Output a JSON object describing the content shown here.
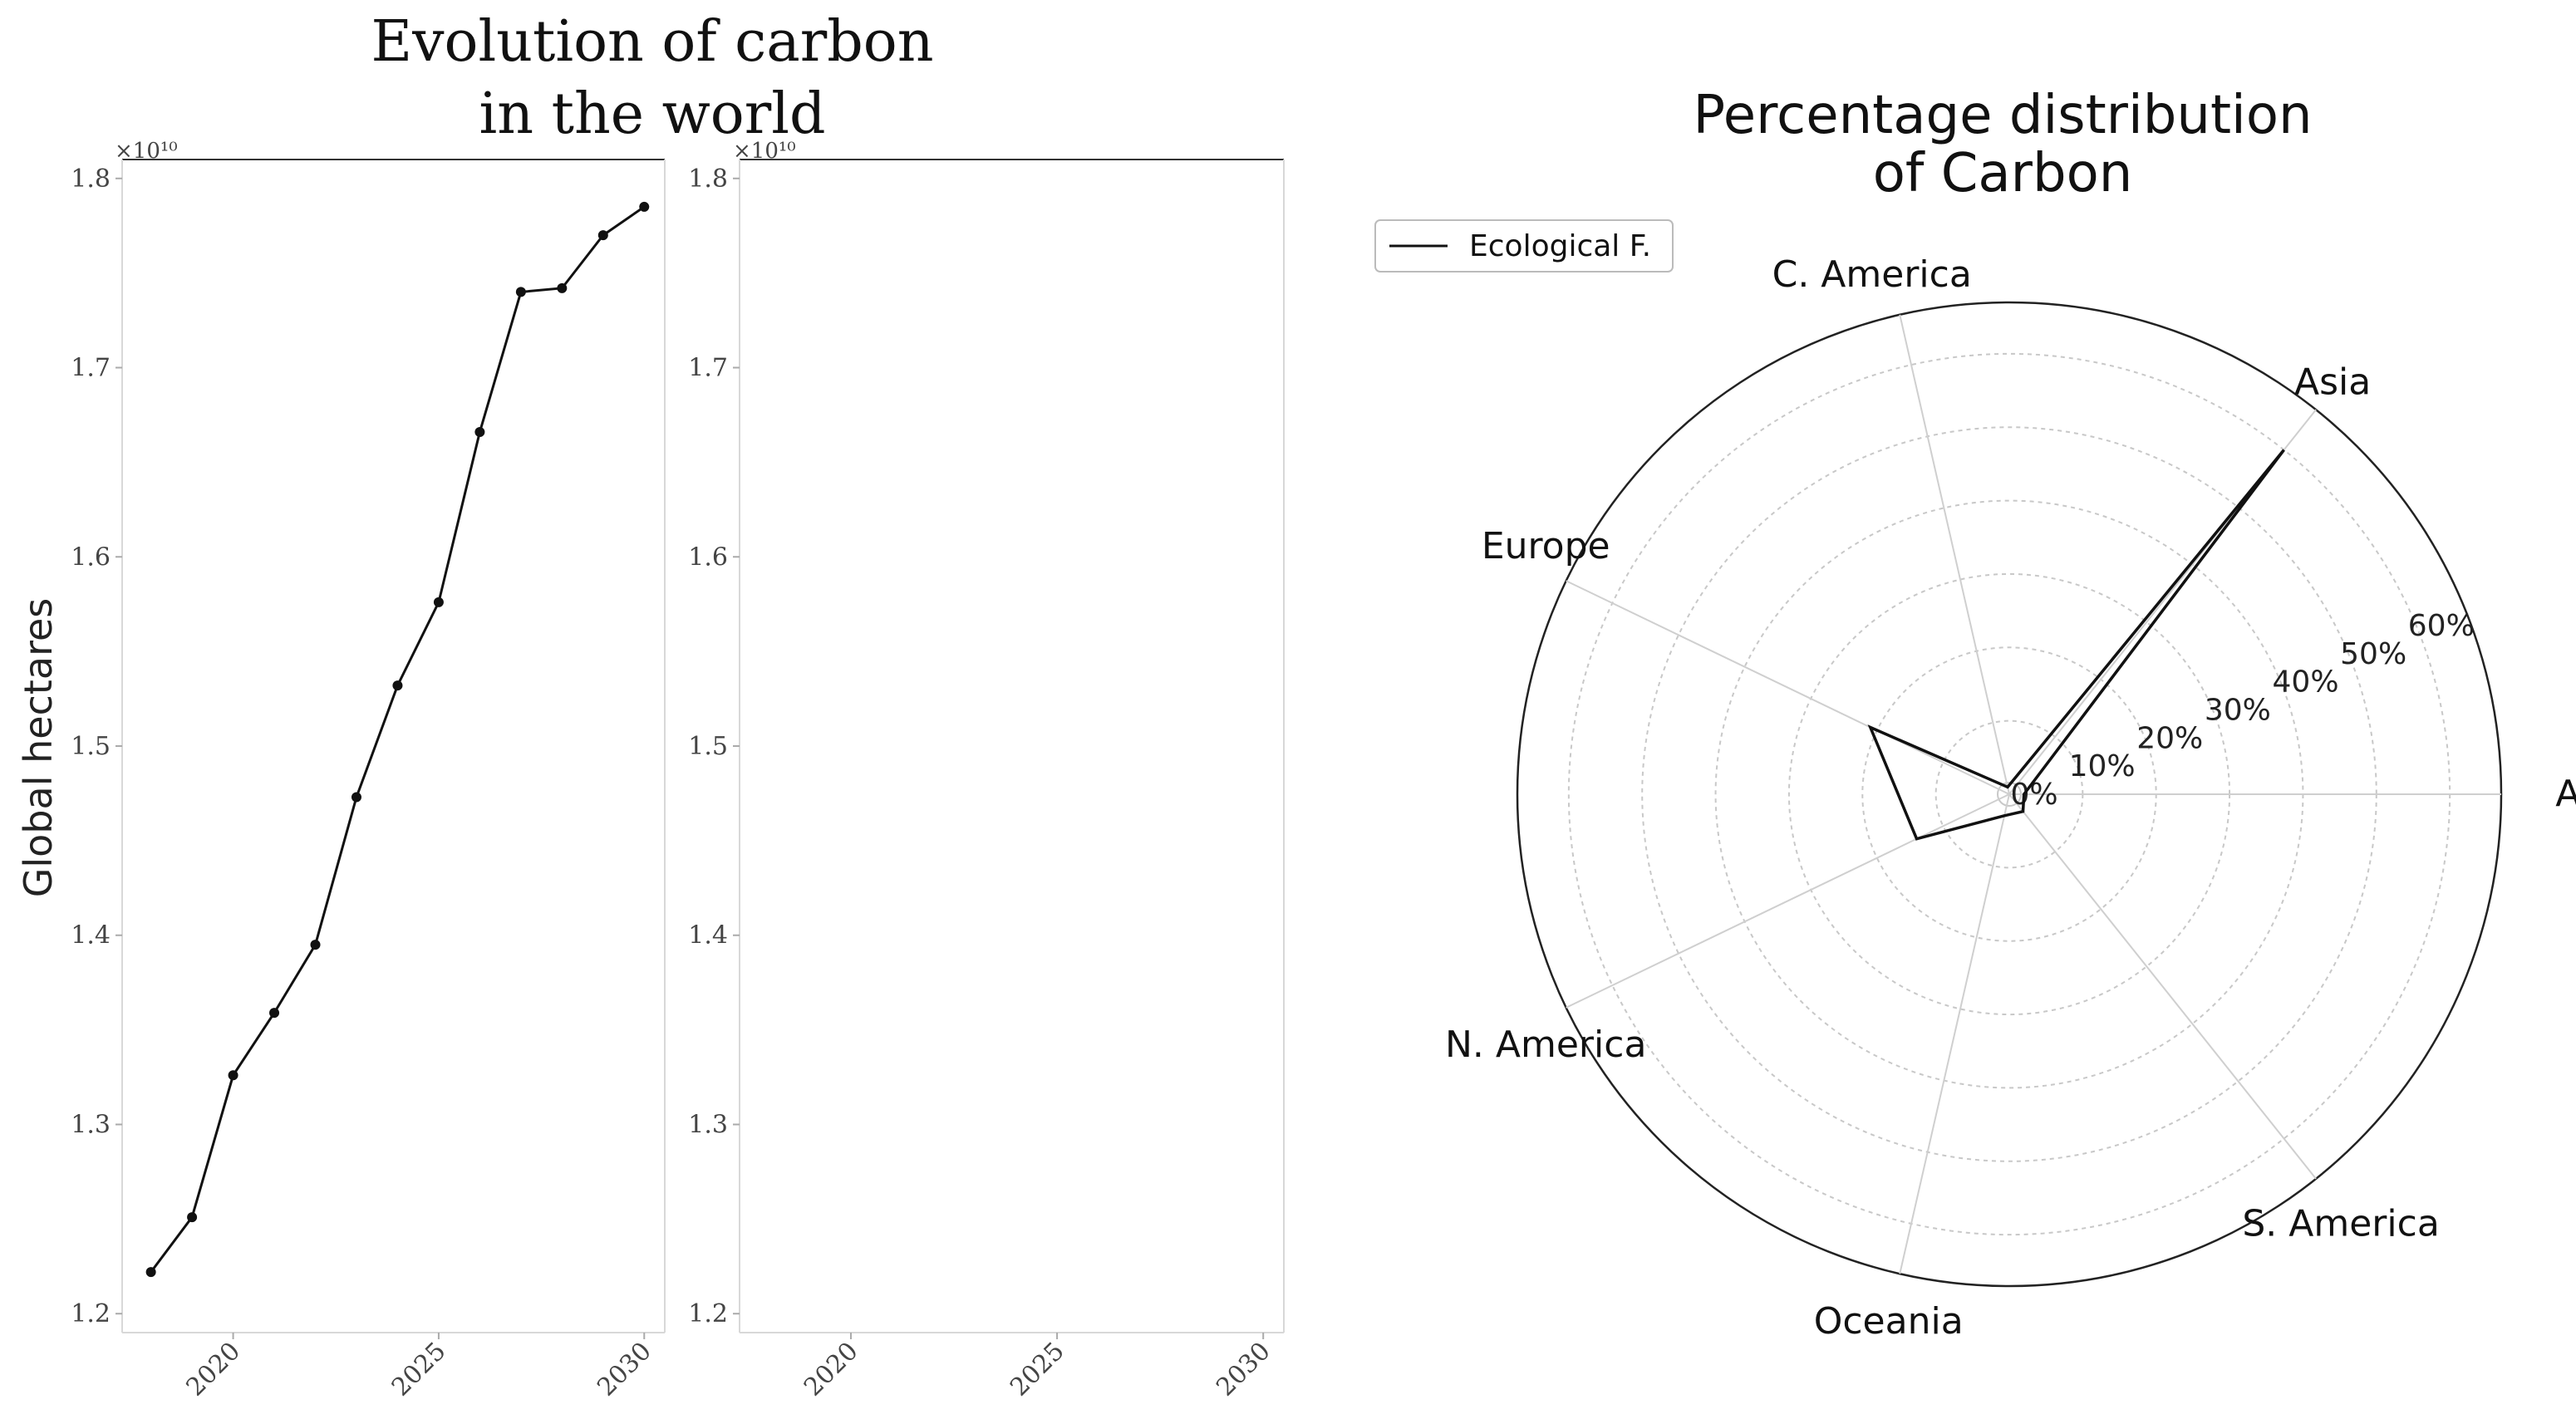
{
  "chart_data": [
    {
      "type": "line",
      "title": "Evolution of carbon\nin the world",
      "ylabel": "Global hectares",
      "xlabel": "",
      "offset_text": "×10¹⁰",
      "x": [
        2018,
        2019,
        2020,
        2021,
        2022,
        2023,
        2024,
        2025,
        2026,
        2027,
        2028,
        2029,
        2030
      ],
      "series": [
        {
          "values": [
            1.222,
            1.251,
            1.326,
            1.359,
            1.395,
            1.473,
            1.532,
            1.576,
            1.666,
            1.74,
            1.742,
            1.77,
            1.785
          ]
        }
      ],
      "xlim": [
        2017.3,
        2030.5
      ],
      "ylim": [
        1.19,
        1.81
      ],
      "xticks": [
        "2020",
        "2025",
        "2030"
      ],
      "xtick_values": [
        2020,
        2025,
        2030
      ],
      "yticks": [
        "1.2",
        "1.3",
        "1.4",
        "1.5",
        "1.6",
        "1.7",
        "1.8"
      ],
      "ytick_values": [
        1.2,
        1.3,
        1.4,
        1.5,
        1.6,
        1.7,
        1.8
      ],
      "color": "#111111",
      "grid": false
    },
    {
      "type": "line",
      "title": "",
      "offset_text": "×10¹⁰",
      "x": [],
      "series": [],
      "xlim": [
        2017.3,
        2030.5
      ],
      "ylim": [
        1.19,
        1.81
      ],
      "xticks": [
        "2020",
        "2025",
        "2030"
      ],
      "xtick_values": [
        2020,
        2025,
        2030
      ],
      "yticks": [
        "1.2",
        "1.3",
        "1.4",
        "1.5",
        "1.6",
        "1.7",
        "1.8"
      ],
      "ytick_values": [
        1.2,
        1.3,
        1.4,
        1.5,
        1.6,
        1.7,
        1.8
      ],
      "grid": false
    },
    {
      "type": "radar",
      "title": "Percentage distribution\nof Carbon",
      "categories": [
        "Africa",
        "Asia",
        "C. America",
        "Europe",
        "N. America",
        "Oceania",
        "S. America"
      ],
      "series": [
        {
          "name": "Ecological F.",
          "values": [
            2,
            60,
            1,
            21,
            14,
            3,
            3
          ]
        }
      ],
      "rlim": [
        0,
        67
      ],
      "rticks": [
        "0%",
        "10%",
        "20%",
        "30%",
        "40%",
        "50%",
        "60%"
      ],
      "rtick_values": [
        0,
        10,
        20,
        30,
        40,
        50,
        60
      ],
      "legend_position": "top-left",
      "color": "#111111",
      "grid": true
    }
  ]
}
